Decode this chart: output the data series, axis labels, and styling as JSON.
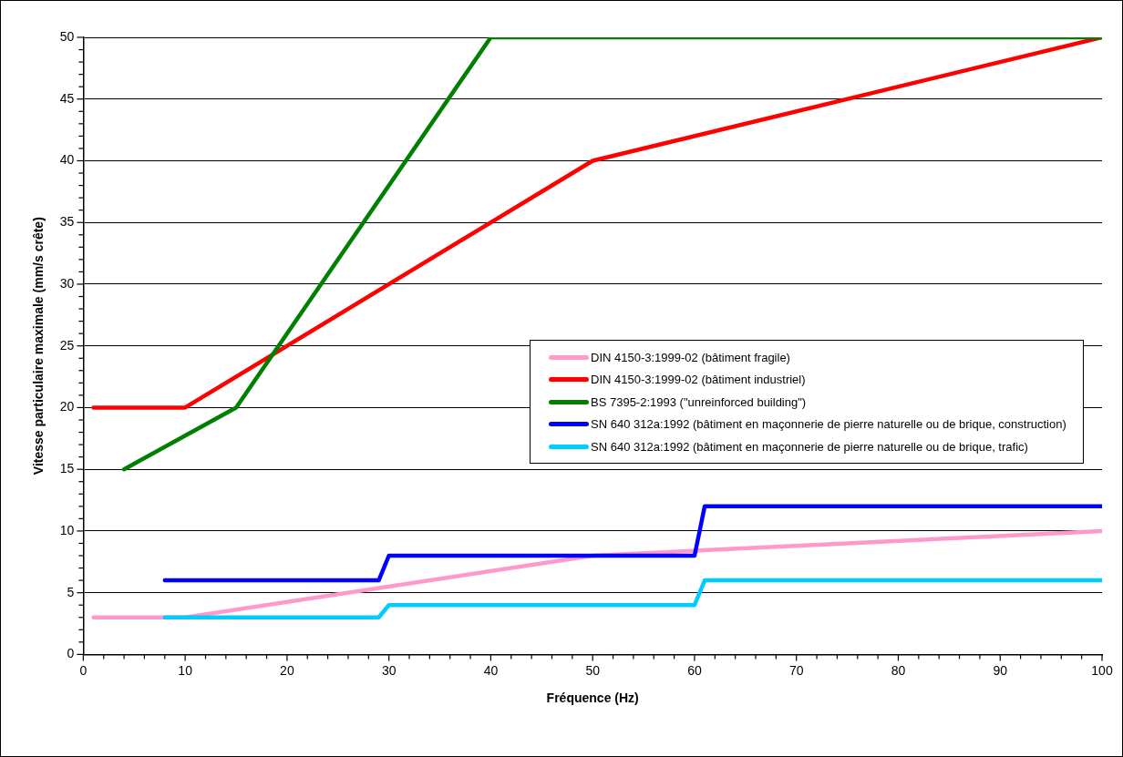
{
  "chart_data": {
    "type": "line",
    "xlabel": "Fréquence (Hz)",
    "ylabel": "Vitesse particulaire maximale (mm/s crête)",
    "xlim": [
      0,
      100
    ],
    "xticks": [
      0,
      {
        "value": 2,
        "label": null
      },
      {
        "value": 4,
        "label": null
      },
      {
        "value": 6,
        "label": null
      },
      {
        "value": 8,
        "label": null
      },
      10,
      {
        "value": 12,
        "label": null
      },
      {
        "value": 14,
        "label": null
      },
      {
        "value": 16,
        "label": null
      },
      {
        "value": 18,
        "label": null
      },
      20,
      {
        "value": 22,
        "label": null
      },
      {
        "value": 24,
        "label": null
      },
      {
        "value": 26,
        "label": null
      },
      {
        "value": 28,
        "label": null
      },
      30,
      {
        "value": 32,
        "label": null
      },
      {
        "value": 34,
        "label": null
      },
      {
        "value": 36,
        "label": null
      },
      {
        "value": 38,
        "label": null
      },
      40,
      {
        "value": 42,
        "label": null
      },
      {
        "value": 44,
        "label": null
      },
      {
        "value": 46,
        "label": null
      },
      {
        "value": 48,
        "label": null
      },
      50,
      {
        "value": 52,
        "label": null
      },
      {
        "value": 54,
        "label": null
      },
      {
        "value": 56,
        "label": null
      },
      {
        "value": 58,
        "label": null
      },
      60,
      {
        "value": 62,
        "label": null
      },
      {
        "value": 64,
        "label": null
      },
      {
        "value": 66,
        "label": null
      },
      {
        "value": 68,
        "label": null
      },
      70,
      {
        "value": 72,
        "label": null
      },
      {
        "value": 74,
        "label": null
      },
      {
        "value": 76,
        "label": null
      },
      {
        "value": 78,
        "label": null
      },
      80,
      {
        "value": 82,
        "label": null
      },
      {
        "value": 84,
        "label": null
      },
      {
        "value": 86,
        "label": null
      },
      {
        "value": 88,
        "label": null
      },
      90,
      {
        "value": 92,
        "label": null
      },
      {
        "value": 94,
        "label": null
      },
      {
        "value": 96,
        "label": null
      },
      {
        "value": 98,
        "label": null
      },
      100
    ],
    "ylim": [
      0,
      50
    ],
    "yticks": [
      0,
      {
        "value": 1,
        "label": null
      },
      {
        "value": 2,
        "label": null
      },
      {
        "value": 3,
        "label": null
      },
      {
        "value": 4,
        "label": null
      },
      5,
      {
        "value": 6,
        "label": null
      },
      {
        "value": 7,
        "label": null
      },
      {
        "value": 8,
        "label": null
      },
      {
        "value": 9,
        "label": null
      },
      10,
      {
        "value": 11,
        "label": null
      },
      {
        "value": 12,
        "label": null
      },
      {
        "value": 13,
        "label": null
      },
      {
        "value": 14,
        "label": null
      },
      15,
      {
        "value": 16,
        "label": null
      },
      {
        "value": 17,
        "label": null
      },
      {
        "value": 18,
        "label": null
      },
      {
        "value": 19,
        "label": null
      },
      20,
      {
        "value": 21,
        "label": null
      },
      {
        "value": 22,
        "label": null
      },
      {
        "value": 23,
        "label": null
      },
      {
        "value": 24,
        "label": null
      },
      25,
      {
        "value": 26,
        "label": null
      },
      {
        "value": 27,
        "label": null
      },
      {
        "value": 28,
        "label": null
      },
      {
        "value": 29,
        "label": null
      },
      30,
      {
        "value": 31,
        "label": null
      },
      {
        "value": 32,
        "label": null
      },
      {
        "value": 33,
        "label": null
      },
      {
        "value": 34,
        "label": null
      },
      35,
      {
        "value": 36,
        "label": null
      },
      {
        "value": 37,
        "label": null
      },
      {
        "value": 38,
        "label": null
      },
      {
        "value": 39,
        "label": null
      },
      40,
      {
        "value": 41,
        "label": null
      },
      {
        "value": 42,
        "label": null
      },
      {
        "value": 43,
        "label": null
      },
      {
        "value": 44,
        "label": null
      },
      45,
      {
        "value": 46,
        "label": null
      },
      {
        "value": 47,
        "label": null
      },
      {
        "value": 48,
        "label": null
      },
      {
        "value": 49,
        "label": null
      },
      50
    ],
    "grid": "y",
    "legend": "right",
    "marker": "none",
    "line_style": "solid",
    "series": [
      {
        "name": "DIN 4150-3:1999-02 (bâtiment fragile)",
        "color": "#ff99cc",
        "x": [
          1,
          10,
          50,
          100
        ],
        "values": [
          3,
          3,
          8,
          10
        ]
      },
      {
        "name": "DIN 4150-3:1999-02 (bâtiment industriel)",
        "color": "#ff0000",
        "x": [
          1,
          10,
          50,
          100
        ],
        "values": [
          20,
          20,
          40,
          50
        ]
      },
      {
        "name": "BS 7395-2:1993 (\"unreinforced building\")",
        "color": "#008000",
        "x": [
          4,
          15,
          40,
          100
        ],
        "values": [
          15,
          20,
          50,
          50
        ]
      },
      {
        "name": "SN 640 312a:1992 (bâtiment en maçonnerie de pierre naturelle ou de brique, construction)",
        "color": "#0000ff",
        "x": [
          8,
          29,
          30,
          60,
          61,
          100
        ],
        "values": [
          6,
          6,
          8,
          8,
          12,
          12
        ]
      },
      {
        "name": "SN 640 312a:1992 (bâtiment en maçonnerie de pierre naturelle ou de brique, trafic)",
        "color": "#00ccff",
        "x": [
          8,
          29,
          30,
          60,
          61,
          100
        ],
        "values": [
          3,
          3,
          4,
          4,
          6,
          6
        ]
      }
    ]
  }
}
